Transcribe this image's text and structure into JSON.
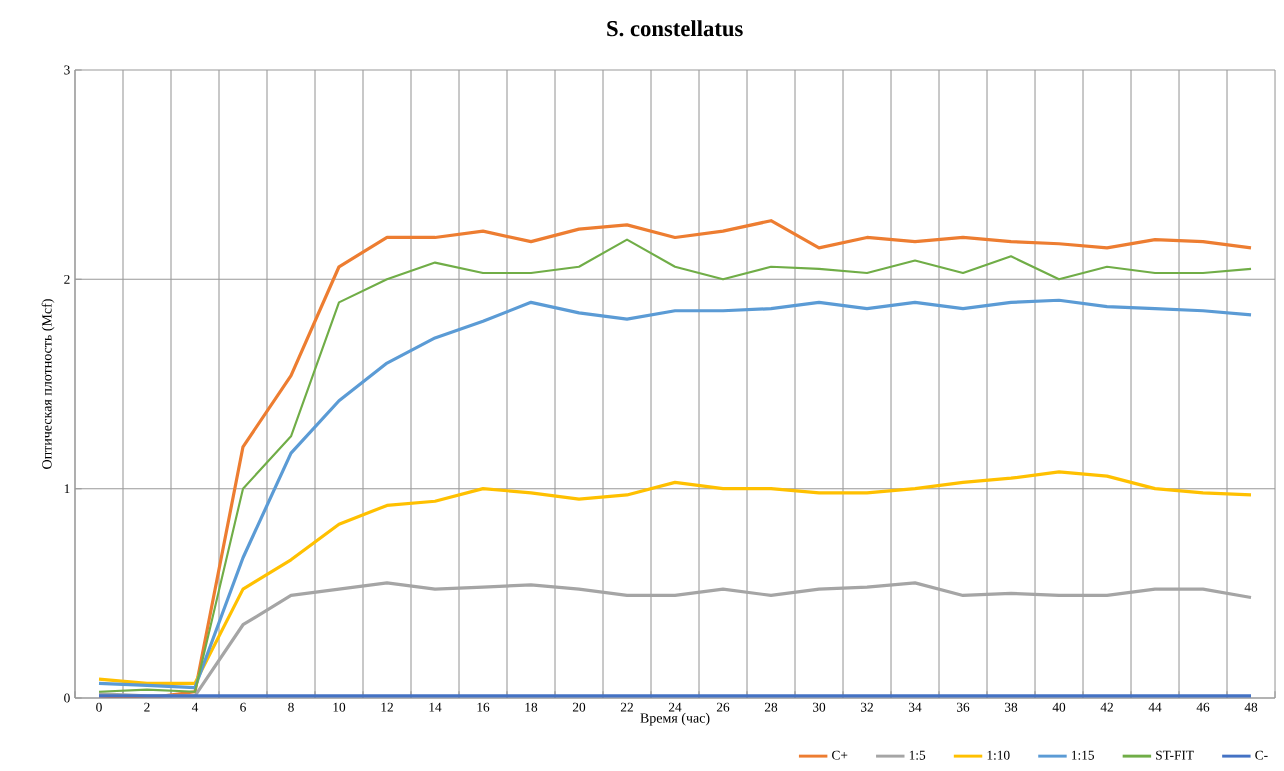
{
  "chart_data": {
    "type": "line",
    "title": "S. constellatus",
    "xlabel": "Время (час)",
    "ylabel": "Оптическая плотность (Mcf)",
    "categories": [
      "0",
      "2",
      "4",
      "6",
      "8",
      "10",
      "12",
      "14",
      "16",
      "18",
      "20",
      "22",
      "24",
      "26",
      "28",
      "30",
      "32",
      "34",
      "36",
      "38",
      "40",
      "42",
      "44",
      "46",
      "48"
    ],
    "ylim": [
      0,
      3
    ],
    "yticks": [
      0,
      1,
      2,
      3
    ],
    "grid": true,
    "legend": "bottom right",
    "marker": "none",
    "line_style": "solid",
    "series": [
      {
        "name": "C-",
        "color": "#4472c4",
        "values": [
          0.01,
          0.01,
          0.01,
          0.01,
          0.01,
          0.01,
          0.01,
          0.01,
          0.01,
          0.01,
          0.01,
          0.01,
          0.01,
          0.01,
          0.01,
          0.01,
          0.01,
          0.01,
          0.01,
          0.01,
          0.01,
          0.01,
          0.01,
          0.01,
          0.01
        ]
      },
      {
        "name": "C+",
        "color": "#ed7d31",
        "values": [
          0.01,
          0.0,
          0.03,
          1.2,
          1.54,
          2.06,
          2.2,
          2.2,
          2.23,
          2.18,
          2.24,
          2.26,
          2.2,
          2.23,
          2.28,
          2.15,
          2.2,
          2.18,
          2.2,
          2.18,
          2.17,
          2.15,
          2.19,
          2.18,
          2.15
        ]
      },
      {
        "name": "1:5",
        "color": "#a5a5a5",
        "values": [
          0.02,
          0.01,
          0.01,
          0.35,
          0.49,
          0.52,
          0.55,
          0.52,
          0.53,
          0.54,
          0.52,
          0.49,
          0.49,
          0.52,
          0.49,
          0.52,
          0.53,
          0.55,
          0.49,
          0.5,
          0.49,
          0.49,
          0.52,
          0.52,
          0.48
        ]
      },
      {
        "name": "1:10",
        "color": "#ffc000",
        "values": [
          0.09,
          0.07,
          0.07,
          0.52,
          0.66,
          0.83,
          0.92,
          0.94,
          1.0,
          0.98,
          0.95,
          0.97,
          1.03,
          1.0,
          1.0,
          0.98,
          0.98,
          1.0,
          1.03,
          1.05,
          1.08,
          1.06,
          1.0,
          0.98,
          0.97
        ]
      },
      {
        "name": "1:15",
        "color": "#5b9bd5",
        "values": [
          0.07,
          0.06,
          0.05,
          0.67,
          1.17,
          1.42,
          1.6,
          1.72,
          1.8,
          1.89,
          1.84,
          1.81,
          1.85,
          1.85,
          1.86,
          1.89,
          1.86,
          1.89,
          1.86,
          1.89,
          1.9,
          1.87,
          1.86,
          1.85,
          1.83
        ]
      },
      {
        "name": "ST-FIT",
        "color": "#70ad47",
        "values": [
          0.03,
          0.04,
          0.03,
          1.0,
          1.25,
          1.89,
          2.0,
          2.08,
          2.03,
          2.03,
          2.06,
          2.19,
          2.06,
          2.0,
          2.06,
          2.05,
          2.03,
          2.09,
          2.03,
          2.11,
          2.0,
          2.06,
          2.03,
          2.03,
          2.05
        ]
      }
    ]
  }
}
